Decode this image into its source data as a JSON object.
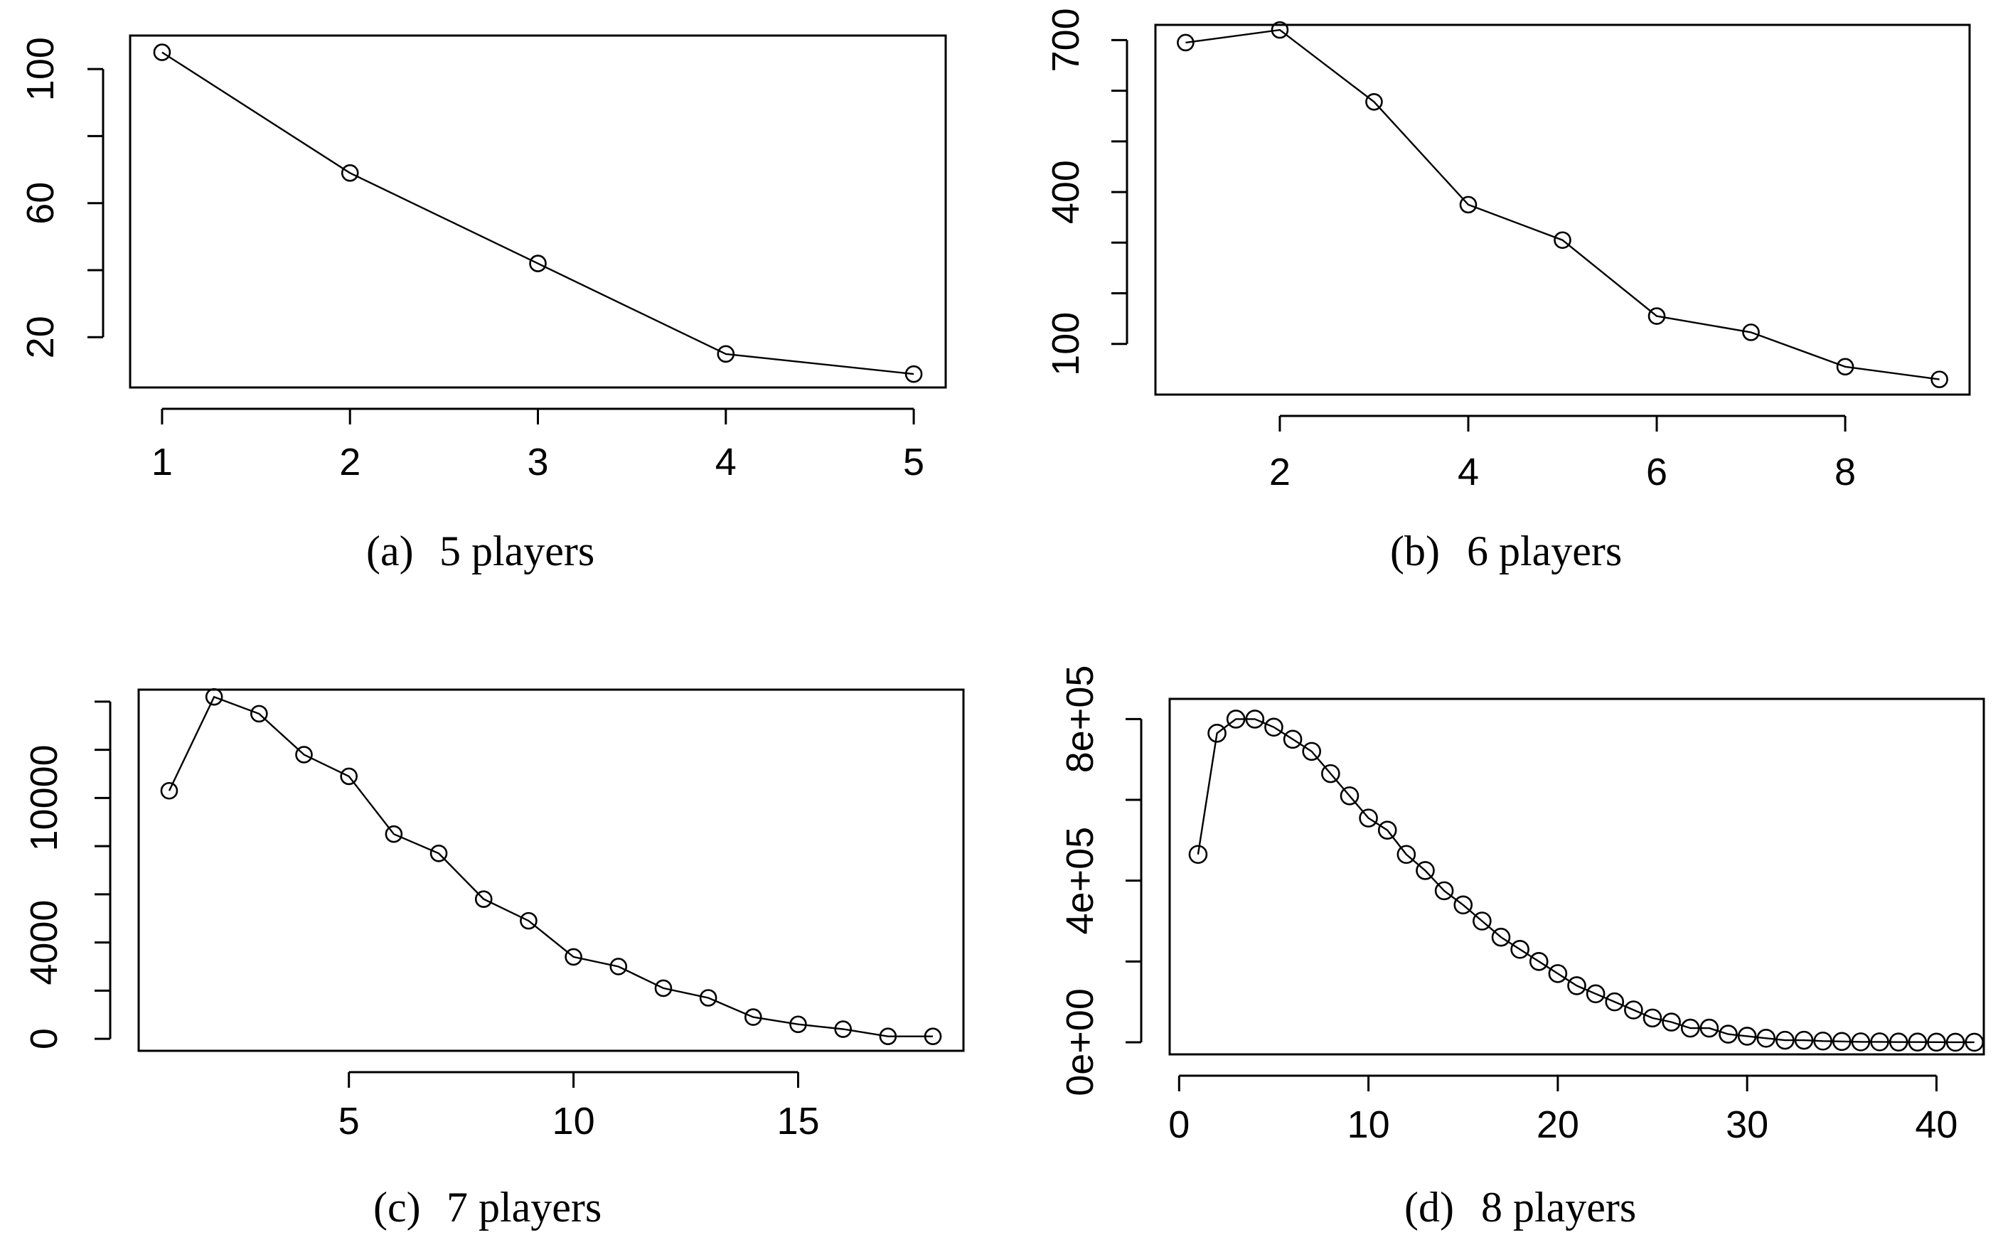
{
  "chart_data": [
    {
      "id": "a",
      "type": "line",
      "caption_label": "(a)",
      "caption_text": "5 players",
      "title": "",
      "xlabel": "",
      "ylabel": "",
      "xlim": [
        0.83,
        5.17
      ],
      "ylim": [
        5,
        110
      ],
      "xticks": [
        1,
        2,
        3,
        4,
        5
      ],
      "xtick_labels": [
        "1",
        "2",
        "3",
        "4",
        "5"
      ],
      "yticks": [
        20,
        40,
        60,
        80,
        100
      ],
      "ytick_labels": [
        "20",
        "",
        "60",
        "",
        "100"
      ],
      "x": [
        1,
        2,
        3,
        4,
        5
      ],
      "y": [
        105,
        69,
        42,
        15,
        9
      ]
    },
    {
      "id": "b",
      "type": "line",
      "caption_label": "(b)",
      "caption_text": "6 players",
      "title": "",
      "xlabel": "",
      "ylabel": "",
      "xlim": [
        0.68,
        9.32
      ],
      "ylim": [
        0,
        730
      ],
      "xticks": [
        2,
        4,
        6,
        8
      ],
      "xtick_labels": [
        "2",
        "4",
        "6",
        "8"
      ],
      "yticks": [
        100,
        200,
        300,
        400,
        500,
        600,
        700
      ],
      "ytick_labels": [
        "100",
        "",
        "",
        "400",
        "",
        "",
        "700"
      ],
      "x": [
        1,
        2,
        3,
        4,
        5,
        6,
        7,
        8,
        9
      ],
      "y": [
        695,
        720,
        578,
        375,
        305,
        155,
        123,
        55,
        30
      ]
    },
    {
      "id": "c",
      "type": "line",
      "caption_label": "(c)",
      "caption_text": "7 players",
      "title": "",
      "xlabel": "",
      "ylabel": "",
      "xlim": [
        0.32,
        18.68
      ],
      "ylim": [
        -500,
        14500
      ],
      "xticks": [
        5,
        10,
        15
      ],
      "xtick_labels": [
        "5",
        "10",
        "15"
      ],
      "yticks": [
        0,
        2000,
        4000,
        6000,
        8000,
        10000,
        12000,
        14000
      ],
      "ytick_labels": [
        "0",
        "",
        "4000",
        "",
        "",
        "10000",
        "",
        ""
      ],
      "x": [
        1,
        2,
        3,
        4,
        5,
        6,
        7,
        8,
        9,
        10,
        11,
        12,
        13,
        14,
        15,
        16,
        17,
        18
      ],
      "y": [
        10300,
        14200,
        13500,
        11800,
        10900,
        8500,
        7700,
        5800,
        4900,
        3400,
        3000,
        2100,
        1700,
        900,
        600,
        400,
        100,
        100
      ]
    },
    {
      "id": "d",
      "type": "line",
      "caption_label": "(d)",
      "caption_text": "8 players",
      "title": "",
      "xlabel": "",
      "ylabel": "",
      "xlim": [
        -0.5,
        42.5
      ],
      "ylim": [
        -30000,
        850000
      ],
      "xticks": [
        0,
        10,
        20,
        30,
        40
      ],
      "xtick_labels": [
        "0",
        "10",
        "20",
        "30",
        "40"
      ],
      "yticks": [
        0,
        200000,
        400000,
        600000,
        800000
      ],
      "ytick_labels": [
        "0e+00",
        "",
        "4e+05",
        "",
        "8e+05"
      ],
      "x": [
        1,
        2,
        3,
        4,
        5,
        6,
        7,
        8,
        9,
        10,
        11,
        12,
        13,
        14,
        15,
        16,
        17,
        18,
        19,
        20,
        21,
        22,
        23,
        24,
        25,
        26,
        27,
        28,
        29,
        30,
        31,
        32,
        33,
        34,
        35,
        36,
        37,
        38,
        39,
        40,
        41,
        42
      ],
      "y": [
        465000,
        765000,
        800000,
        800000,
        780000,
        750000,
        720000,
        665000,
        610000,
        555000,
        525000,
        465000,
        425000,
        375000,
        340000,
        300000,
        260000,
        230000,
        200000,
        170000,
        140000,
        120000,
        100000,
        80000,
        60000,
        50000,
        35000,
        35000,
        20000,
        15000,
        10000,
        5000,
        5000,
        3000,
        2000,
        1000,
        1000,
        500,
        500,
        200,
        100,
        100
      ]
    }
  ]
}
